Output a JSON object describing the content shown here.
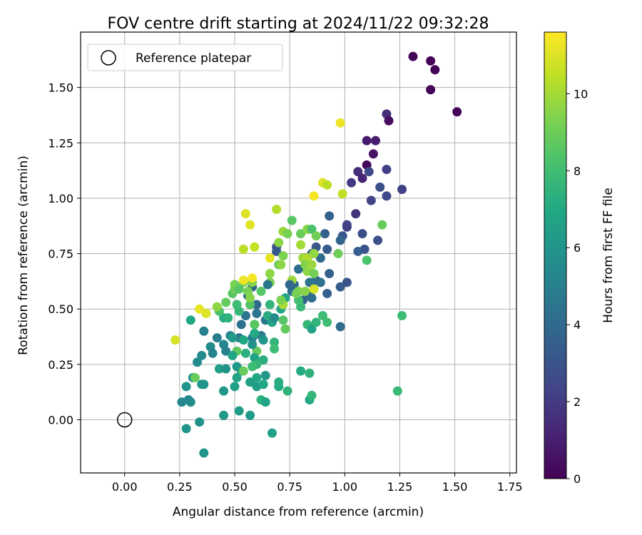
{
  "chart_data": {
    "type": "scatter",
    "title": "FOV centre drift starting at 2024/11/22 09:32:28",
    "xlabel": "Angular distance from reference (arcmin)",
    "ylabel": "Rotation from reference (arcmin)",
    "xlim": [
      -0.2,
      1.78
    ],
    "ylim": [
      -0.24,
      1.75
    ],
    "xticks": [
      0.0,
      0.25,
      0.5,
      0.75,
      1.0,
      1.25,
      1.5,
      1.75
    ],
    "xtick_labels": [
      "0.00",
      "0.25",
      "0.50",
      "0.75",
      "1.00",
      "1.25",
      "1.50",
      "1.75"
    ],
    "yticks": [
      0.0,
      0.25,
      0.5,
      0.75,
      1.0,
      1.25,
      1.5
    ],
    "ytick_labels": [
      "0.00",
      "0.25",
      "0.50",
      "0.75",
      "1.00",
      "1.25",
      "1.50"
    ],
    "grid": true,
    "legend": {
      "placement": "top-left",
      "entries": [
        "Reference platepar"
      ]
    },
    "reference_point": {
      "x": 0.0,
      "y": 0.0
    },
    "colorbar": {
      "label": "Hours from first FF file",
      "colormap": "viridis",
      "range": [
        0,
        11.6
      ],
      "ticks": [
        0,
        2,
        4,
        6,
        8,
        10
      ],
      "tick_labels": [
        "0",
        "2",
        "4",
        "6",
        "8",
        "10"
      ]
    },
    "points": [
      {
        "x": 1.31,
        "y": 1.64,
        "h": 0.1
      },
      {
        "x": 1.39,
        "y": 1.62,
        "h": 0.1
      },
      {
        "x": 1.41,
        "y": 1.58,
        "h": 0.1
      },
      {
        "x": 1.39,
        "y": 1.49,
        "h": 0.1
      },
      {
        "x": 1.51,
        "y": 1.39,
        "h": 0.1
      },
      {
        "x": 1.19,
        "y": 1.38,
        "h": 1.5
      },
      {
        "x": 1.2,
        "y": 1.35,
        "h": 0.4
      },
      {
        "x": 1.1,
        "y": 1.26,
        "h": 0.9
      },
      {
        "x": 1.14,
        "y": 1.26,
        "h": 0.9
      },
      {
        "x": 1.13,
        "y": 1.2,
        "h": 0.6
      },
      {
        "x": 1.1,
        "y": 1.15,
        "h": 0.2
      },
      {
        "x": 1.19,
        "y": 1.13,
        "h": 2.2
      },
      {
        "x": 1.11,
        "y": 1.12,
        "h": 2.5
      },
      {
        "x": 1.06,
        "y": 1.12,
        "h": 1.5
      },
      {
        "x": 1.08,
        "y": 1.09,
        "h": 1.2
      },
      {
        "x": 1.03,
        "y": 1.07,
        "h": 2.0
      },
      {
        "x": 1.16,
        "y": 1.05,
        "h": 2.8
      },
      {
        "x": 1.26,
        "y": 1.04,
        "h": 2.2
      },
      {
        "x": 1.19,
        "y": 1.01,
        "h": 2.5
      },
      {
        "x": 1.12,
        "y": 0.99,
        "h": 2.3
      },
      {
        "x": 1.05,
        "y": 0.93,
        "h": 1.6
      },
      {
        "x": 1.01,
        "y": 0.88,
        "h": 2.5
      },
      {
        "x": 1.01,
        "y": 0.87,
        "h": 2.2
      },
      {
        "x": 1.08,
        "y": 0.84,
        "h": 2.7
      },
      {
        "x": 1.15,
        "y": 0.81,
        "h": 2.8
      },
      {
        "x": 1.09,
        "y": 0.77,
        "h": 3.0
      },
      {
        "x": 1.06,
        "y": 0.76,
        "h": 3.4
      },
      {
        "x": 0.93,
        "y": 0.92,
        "h": 3.6
      },
      {
        "x": 0.91,
        "y": 0.84,
        "h": 3.5
      },
      {
        "x": 0.99,
        "y": 0.83,
        "h": 3.1
      },
      {
        "x": 0.98,
        "y": 0.81,
        "h": 3.8
      },
      {
        "x": 0.87,
        "y": 0.78,
        "h": 3.2
      },
      {
        "x": 0.92,
        "y": 0.77,
        "h": 3.3
      },
      {
        "x": 0.85,
        "y": 0.75,
        "h": 3.7
      },
      {
        "x": 0.69,
        "y": 0.78,
        "h": 3.0
      },
      {
        "x": 0.69,
        "y": 0.76,
        "h": 3.2
      },
      {
        "x": 0.82,
        "y": 0.73,
        "h": 3.4
      },
      {
        "x": 0.89,
        "y": 0.73,
        "h": 4.0
      },
      {
        "x": 0.79,
        "y": 0.68,
        "h": 4.2
      },
      {
        "x": 0.93,
        "y": 0.66,
        "h": 3.6
      },
      {
        "x": 0.87,
        "y": 0.63,
        "h": 3.9
      },
      {
        "x": 0.84,
        "y": 0.62,
        "h": 4.5
      },
      {
        "x": 0.89,
        "y": 0.62,
        "h": 4.3
      },
      {
        "x": 0.77,
        "y": 0.61,
        "h": 3.8
      },
      {
        "x": 0.76,
        "y": 0.58,
        "h": 4.1
      },
      {
        "x": 0.83,
        "y": 0.57,
        "h": 3.9
      },
      {
        "x": 0.92,
        "y": 0.57,
        "h": 3.5
      },
      {
        "x": 0.85,
        "y": 0.55,
        "h": 4.2
      },
      {
        "x": 0.81,
        "y": 0.54,
        "h": 3.7
      },
      {
        "x": 0.98,
        "y": 0.6,
        "h": 3.3
      },
      {
        "x": 1.01,
        "y": 0.62,
        "h": 3.0
      },
      {
        "x": 0.66,
        "y": 0.62,
        "h": 3.8
      },
      {
        "x": 0.98,
        "y": 0.42,
        "h": 4.0
      },
      {
        "x": 0.58,
        "y": 0.6,
        "h": 3.6
      },
      {
        "x": 0.56,
        "y": 0.56,
        "h": 3.9
      },
      {
        "x": 0.6,
        "y": 0.52,
        "h": 4.0
      },
      {
        "x": 0.55,
        "y": 0.47,
        "h": 4.4
      },
      {
        "x": 0.53,
        "y": 0.43,
        "h": 4.2
      },
      {
        "x": 0.6,
        "y": 0.48,
        "h": 4.5
      },
      {
        "x": 0.64,
        "y": 0.45,
        "h": 4.6
      },
      {
        "x": 0.62,
        "y": 0.38,
        "h": 4.8
      },
      {
        "x": 0.58,
        "y": 0.37,
        "h": 5.0
      },
      {
        "x": 0.52,
        "y": 0.37,
        "h": 4.7
      },
      {
        "x": 0.48,
        "y": 0.38,
        "h": 5.2
      },
      {
        "x": 0.42,
        "y": 0.37,
        "h": 4.9
      },
      {
        "x": 0.45,
        "y": 0.34,
        "h": 5.3
      },
      {
        "x": 0.46,
        "y": 0.31,
        "h": 5.0
      },
      {
        "x": 0.39,
        "y": 0.33,
        "h": 5.4
      },
      {
        "x": 0.4,
        "y": 0.3,
        "h": 5.1
      },
      {
        "x": 0.35,
        "y": 0.29,
        "h": 5.6
      },
      {
        "x": 0.36,
        "y": 0.4,
        "h": 5.0
      },
      {
        "x": 0.33,
        "y": 0.26,
        "h": 5.5
      },
      {
        "x": 0.31,
        "y": 0.19,
        "h": 5.7
      },
      {
        "x": 0.28,
        "y": 0.15,
        "h": 6.0
      },
      {
        "x": 0.29,
        "y": 0.09,
        "h": 5.3
      },
      {
        "x": 0.3,
        "y": 0.08,
        "h": 5.6
      },
      {
        "x": 0.26,
        "y": 0.08,
        "h": 5.4
      },
      {
        "x": 0.28,
        "y": -0.04,
        "h": 6.0
      },
      {
        "x": 0.34,
        "y": -0.01,
        "h": 5.8
      },
      {
        "x": 0.36,
        "y": -0.15,
        "h": 6.0
      },
      {
        "x": 0.36,
        "y": 0.16,
        "h": 5.9
      },
      {
        "x": 0.35,
        "y": 0.16,
        "h": 6.0
      },
      {
        "x": 0.45,
        "y": 0.13,
        "h": 6.1
      },
      {
        "x": 0.45,
        "y": 0.02,
        "h": 6.2
      },
      {
        "x": 0.52,
        "y": 0.04,
        "h": 6.4
      },
      {
        "x": 0.57,
        "y": 0.02,
        "h": 6.3
      },
      {
        "x": 0.67,
        "y": -0.06,
        "h": 6.6
      },
      {
        "x": 0.5,
        "y": 0.15,
        "h": 6.5
      },
      {
        "x": 0.51,
        "y": 0.19,
        "h": 6.7
      },
      {
        "x": 0.53,
        "y": 0.22,
        "h": 6.9
      },
      {
        "x": 0.51,
        "y": 0.24,
        "h": 6.2
      },
      {
        "x": 0.57,
        "y": 0.17,
        "h": 6.5
      },
      {
        "x": 0.6,
        "y": 0.19,
        "h": 6.8
      },
      {
        "x": 0.6,
        "y": 0.15,
        "h": 6.4
      },
      {
        "x": 0.63,
        "y": 0.16,
        "h": 6.9
      },
      {
        "x": 0.64,
        "y": 0.2,
        "h": 6.1
      },
      {
        "x": 0.62,
        "y": 0.09,
        "h": 7.4
      },
      {
        "x": 0.64,
        "y": 0.08,
        "h": 6.8
      },
      {
        "x": 0.7,
        "y": 0.15,
        "h": 7.0
      },
      {
        "x": 0.7,
        "y": 0.17,
        "h": 7.2
      },
      {
        "x": 0.74,
        "y": 0.13,
        "h": 7.5
      },
      {
        "x": 0.8,
        "y": 0.22,
        "h": 7.1
      },
      {
        "x": 0.84,
        "y": 0.21,
        "h": 7.4
      },
      {
        "x": 0.84,
        "y": 0.09,
        "h": 7.0
      },
      {
        "x": 0.85,
        "y": 0.11,
        "h": 7.6
      },
      {
        "x": 1.24,
        "y": 0.13,
        "h": 7.8
      },
      {
        "x": 1.26,
        "y": 0.47,
        "h": 7.9
      },
      {
        "x": 1.1,
        "y": 0.72,
        "h": 8.3
      },
      {
        "x": 0.83,
        "y": 0.43,
        "h": 7.7
      },
      {
        "x": 0.85,
        "y": 0.41,
        "h": 6.6
      },
      {
        "x": 0.87,
        "y": 0.44,
        "h": 7.5
      },
      {
        "x": 0.9,
        "y": 0.47,
        "h": 7.9
      },
      {
        "x": 0.92,
        "y": 0.44,
        "h": 8.0
      },
      {
        "x": 0.8,
        "y": 0.51,
        "h": 7.8
      },
      {
        "x": 0.79,
        "y": 0.54,
        "h": 8.1
      },
      {
        "x": 0.73,
        "y": 0.55,
        "h": 6.9
      },
      {
        "x": 0.71,
        "y": 0.5,
        "h": 7.0
      },
      {
        "x": 0.72,
        "y": 0.45,
        "h": 8.5
      },
      {
        "x": 0.73,
        "y": 0.41,
        "h": 8.8
      },
      {
        "x": 0.65,
        "y": 0.47,
        "h": 7.2
      },
      {
        "x": 0.67,
        "y": 0.44,
        "h": 6.8
      },
      {
        "x": 0.66,
        "y": 0.52,
        "h": 7.6
      },
      {
        "x": 0.68,
        "y": 0.35,
        "h": 7.5
      },
      {
        "x": 0.68,
        "y": 0.32,
        "h": 7.9
      },
      {
        "x": 0.63,
        "y": 0.27,
        "h": 7.3
      },
      {
        "x": 0.6,
        "y": 0.31,
        "h": 8.8
      },
      {
        "x": 0.59,
        "y": 0.28,
        "h": 6.7
      },
      {
        "x": 0.6,
        "y": 0.25,
        "h": 7.6
      },
      {
        "x": 0.58,
        "y": 0.24,
        "h": 7.9
      },
      {
        "x": 0.55,
        "y": 0.3,
        "h": 7.3
      },
      {
        "x": 0.54,
        "y": 0.36,
        "h": 6.9
      },
      {
        "x": 0.59,
        "y": 0.39,
        "h": 7.0
      },
      {
        "x": 0.59,
        "y": 0.43,
        "h": 7.5
      },
      {
        "x": 0.59,
        "y": 0.43,
        "h": 8.6
      },
      {
        "x": 0.52,
        "y": 0.49,
        "h": 7.7
      },
      {
        "x": 0.51,
        "y": 0.52,
        "h": 7.9
      },
      {
        "x": 0.45,
        "y": 0.46,
        "h": 7.2
      },
      {
        "x": 0.47,
        "y": 0.46,
        "h": 7.4
      },
      {
        "x": 0.43,
        "y": 0.49,
        "h": 8.2
      },
      {
        "x": 0.42,
        "y": 0.51,
        "h": 9.6
      },
      {
        "x": 0.46,
        "y": 0.53,
        "h": 8.8
      },
      {
        "x": 0.49,
        "y": 0.57,
        "h": 8.6
      },
      {
        "x": 0.5,
        "y": 0.59,
        "h": 9.0
      },
      {
        "x": 0.5,
        "y": 0.61,
        "h": 9.2
      },
      {
        "x": 0.56,
        "y": 0.58,
        "h": 9.2
      },
      {
        "x": 0.57,
        "y": 0.52,
        "h": 8.4
      },
      {
        "x": 0.57,
        "y": 0.55,
        "h": 9.5
      },
      {
        "x": 0.54,
        "y": 0.62,
        "h": 9.2
      },
      {
        "x": 0.58,
        "y": 0.62,
        "h": 9.4
      },
      {
        "x": 0.51,
        "y": 0.31,
        "h": 8.7
      },
      {
        "x": 0.54,
        "y": 0.22,
        "h": 8.9
      },
      {
        "x": 0.32,
        "y": 0.19,
        "h": 8.9
      },
      {
        "x": 0.52,
        "y": 0.59,
        "h": 8.5
      },
      {
        "x": 0.62,
        "y": 0.58,
        "h": 8.5
      },
      {
        "x": 0.66,
        "y": 0.66,
        "h": 9.6
      },
      {
        "x": 0.66,
        "y": 0.62,
        "h": 9.3
      },
      {
        "x": 0.7,
        "y": 0.7,
        "h": 8.8
      },
      {
        "x": 0.71,
        "y": 0.7,
        "h": 9.6
      },
      {
        "x": 0.72,
        "y": 0.74,
        "h": 9.3
      },
      {
        "x": 0.72,
        "y": 0.85,
        "h": 9.8
      },
      {
        "x": 0.74,
        "y": 0.84,
        "h": 9.2
      },
      {
        "x": 0.76,
        "y": 0.9,
        "h": 8.6
      },
      {
        "x": 0.8,
        "y": 0.84,
        "h": 8.9
      },
      {
        "x": 0.83,
        "y": 0.86,
        "h": 9.5
      },
      {
        "x": 0.85,
        "y": 0.86,
        "h": 8.3
      },
      {
        "x": 0.87,
        "y": 0.83,
        "h": 9.1
      },
      {
        "x": 0.8,
        "y": 0.79,
        "h": 10.0
      },
      {
        "x": 0.81,
        "y": 0.73,
        "h": 9.9
      },
      {
        "x": 0.83,
        "y": 0.73,
        "h": 10.2
      },
      {
        "x": 0.82,
        "y": 0.7,
        "h": 9.4
      },
      {
        "x": 0.83,
        "y": 0.67,
        "h": 9.6
      },
      {
        "x": 0.86,
        "y": 0.66,
        "h": 9.1
      },
      {
        "x": 0.85,
        "y": 0.7,
        "h": 9.8
      },
      {
        "x": 0.86,
        "y": 0.75,
        "h": 9.7
      },
      {
        "x": 0.79,
        "y": 0.58,
        "h": 9.4
      },
      {
        "x": 0.76,
        "y": 0.63,
        "h": 9.9
      },
      {
        "x": 0.78,
        "y": 0.57,
        "h": 9.2
      },
      {
        "x": 0.82,
        "y": 0.58,
        "h": 9.5
      },
      {
        "x": 0.72,
        "y": 0.52,
        "h": 10.1
      },
      {
        "x": 0.71,
        "y": 0.54,
        "h": 9.3
      },
      {
        "x": 0.7,
        "y": 0.8,
        "h": 9.6
      },
      {
        "x": 0.69,
        "y": 0.95,
        "h": 10.3
      },
      {
        "x": 0.59,
        "y": 0.78,
        "h": 10.6
      },
      {
        "x": 0.54,
        "y": 0.77,
        "h": 10.4
      },
      {
        "x": 0.55,
        "y": 0.93,
        "h": 11.0
      },
      {
        "x": 0.57,
        "y": 0.88,
        "h": 11.1
      },
      {
        "x": 0.66,
        "y": 0.73,
        "h": 11.2
      },
      {
        "x": 0.86,
        "y": 0.59,
        "h": 10.9
      },
      {
        "x": 0.58,
        "y": 0.64,
        "h": 11.4
      },
      {
        "x": 0.54,
        "y": 0.63,
        "h": 11.3
      },
      {
        "x": 0.37,
        "y": 0.48,
        "h": 11.0
      },
      {
        "x": 0.34,
        "y": 0.5,
        "h": 11.2
      },
      {
        "x": 0.23,
        "y": 0.36,
        "h": 10.9
      },
      {
        "x": 0.86,
        "y": 1.01,
        "h": 11.4
      },
      {
        "x": 0.9,
        "y": 1.07,
        "h": 11.0
      },
      {
        "x": 0.92,
        "y": 1.06,
        "h": 10.4
      },
      {
        "x": 0.98,
        "y": 1.34,
        "h": 11.3
      },
      {
        "x": 0.99,
        "y": 1.02,
        "h": 10.5
      },
      {
        "x": 0.97,
        "y": 0.75,
        "h": 9.0
      },
      {
        "x": 1.17,
        "y": 0.88,
        "h": 8.9
      },
      {
        "x": 0.75,
        "y": 0.61,
        "h": 3.9
      },
      {
        "x": 0.65,
        "y": 0.61,
        "h": 4.6
      },
      {
        "x": 0.58,
        "y": 0.34,
        "h": 5.8
      },
      {
        "x": 0.49,
        "y": 0.29,
        "h": 6.8
      },
      {
        "x": 0.43,
        "y": 0.23,
        "h": 6.5
      },
      {
        "x": 0.46,
        "y": 0.23,
        "h": 5.9
      },
      {
        "x": 0.49,
        "y": 0.37,
        "h": 6.3
      },
      {
        "x": 0.63,
        "y": 0.36,
        "h": 6.0
      },
      {
        "x": 0.68,
        "y": 0.46,
        "h": 5.6
      },
      {
        "x": 0.3,
        "y": 0.45,
        "h": 6.9
      }
    ]
  }
}
